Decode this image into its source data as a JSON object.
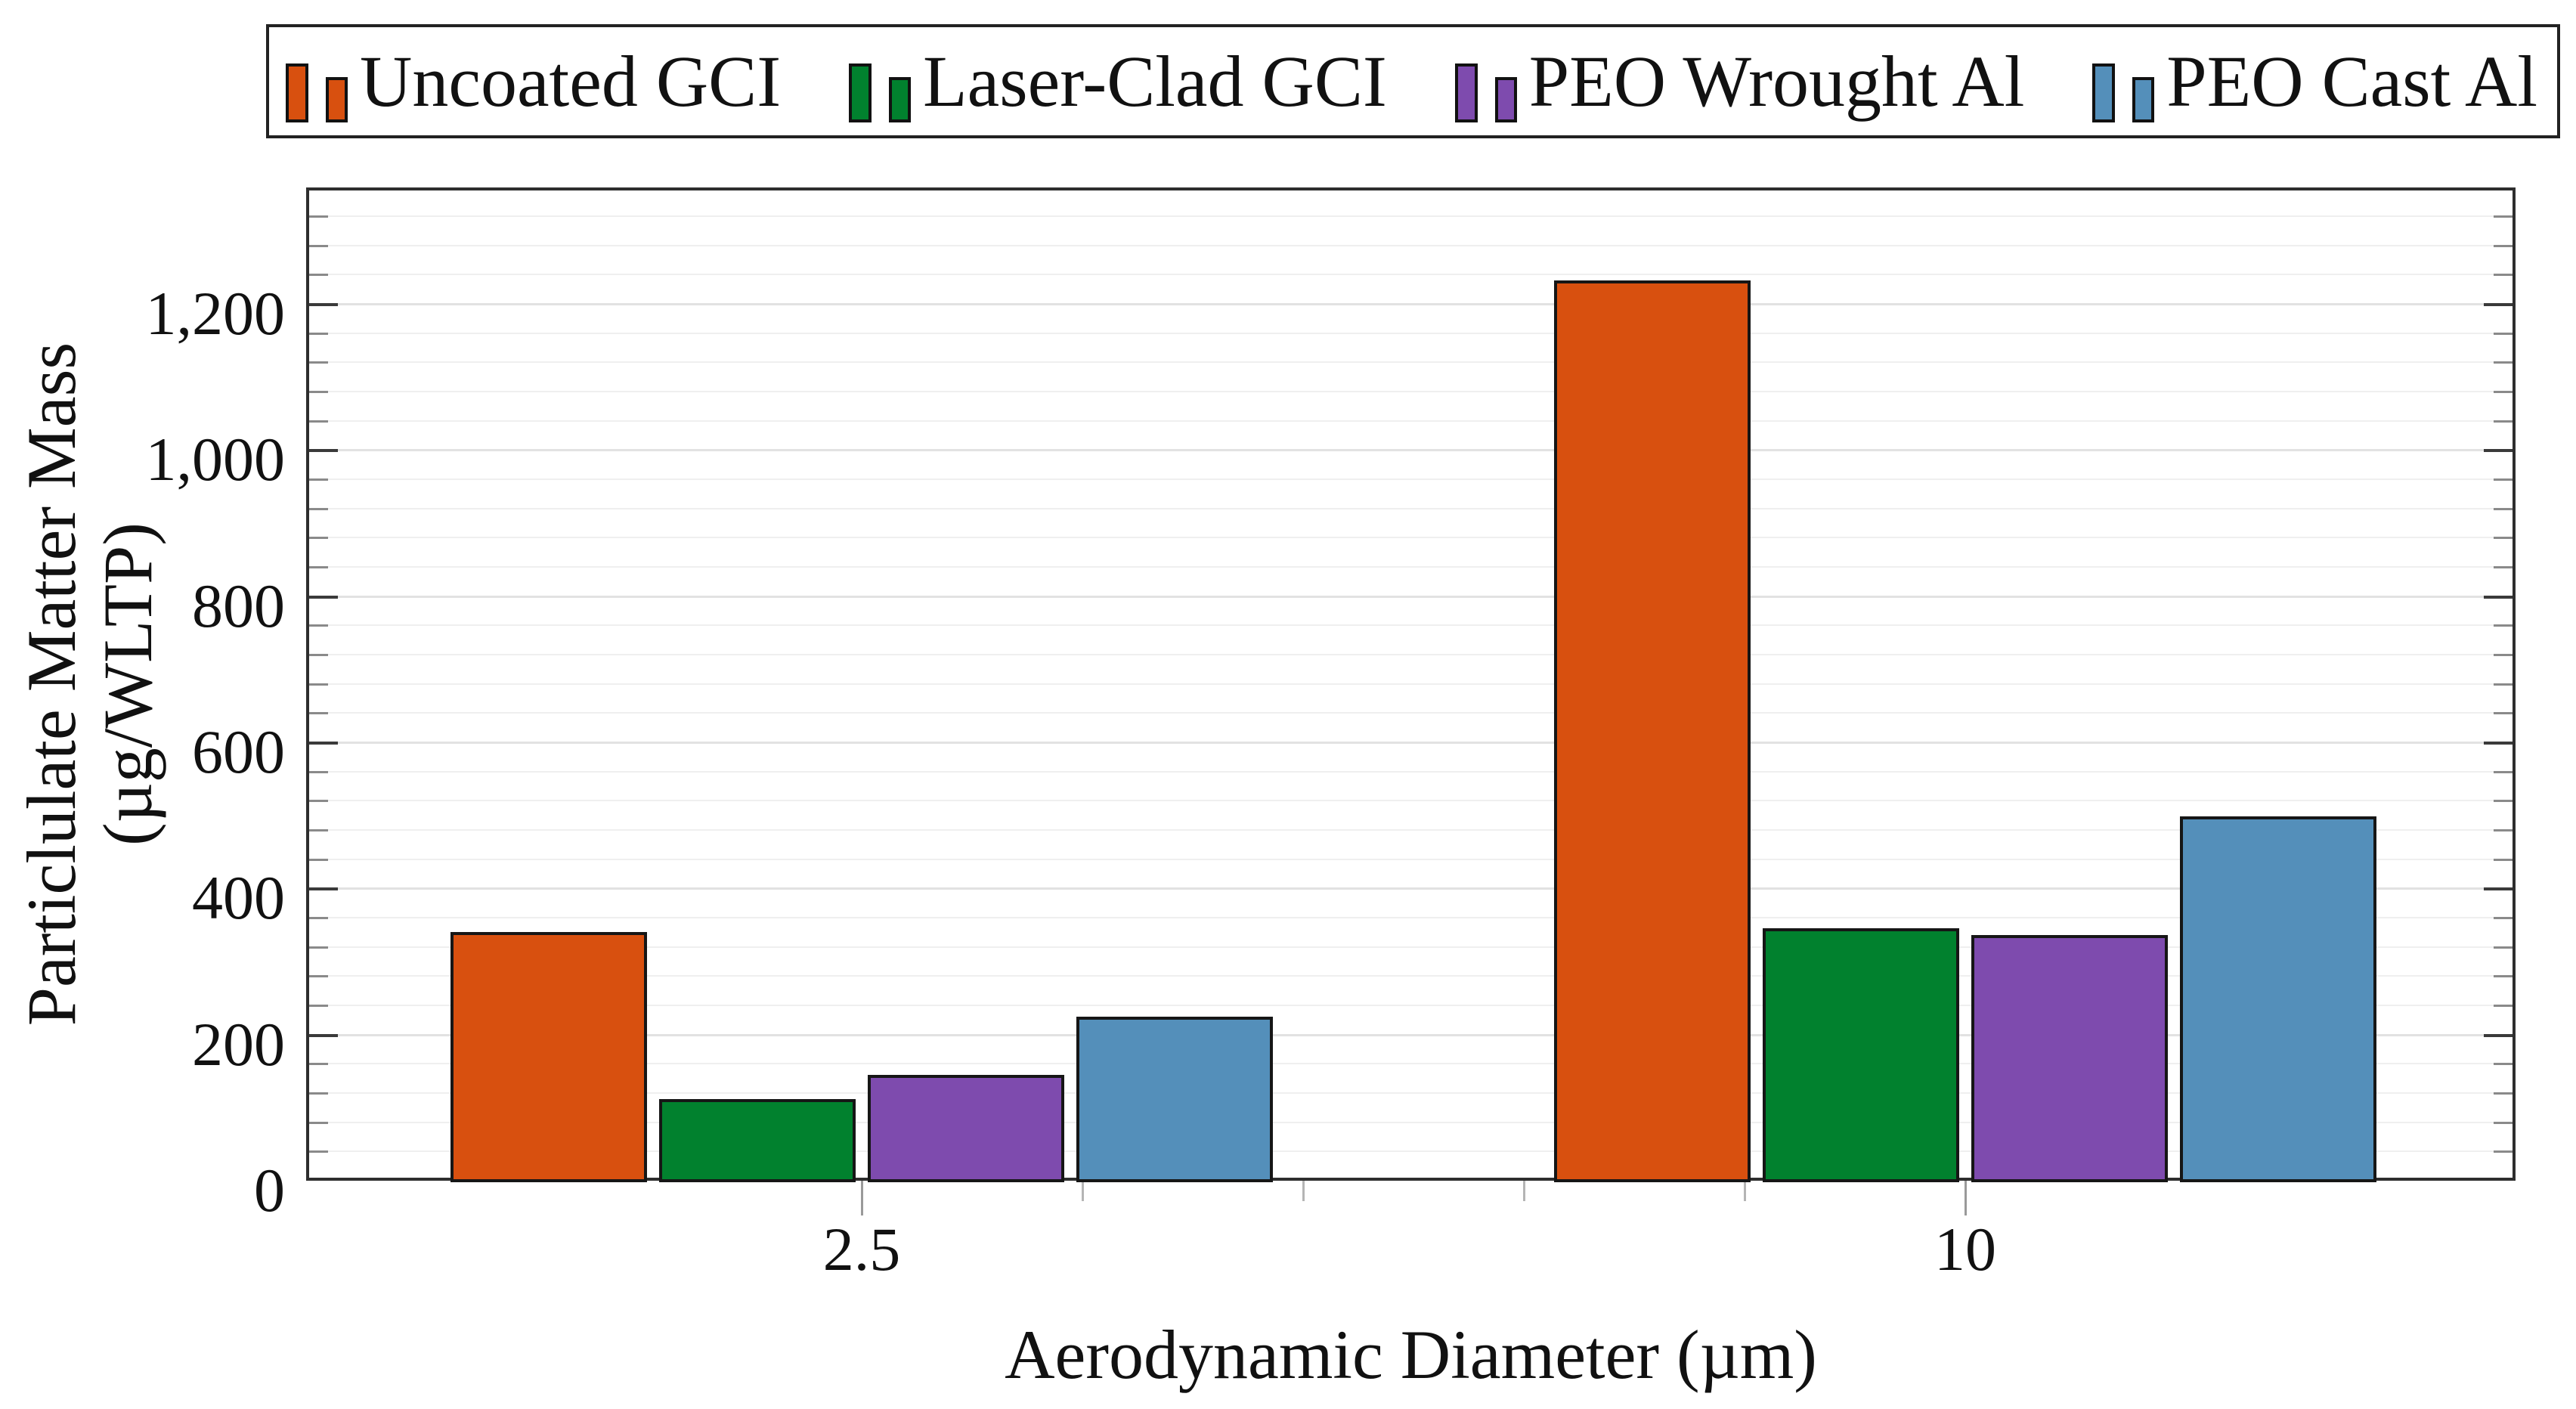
{
  "chart_data": {
    "type": "bar",
    "title": "",
    "xlabel": "Aerodynamic Diameter (µm)",
    "ylabel": "Particlulate Matter Mass (µg/WLTP)",
    "categories": [
      "2.5",
      "10"
    ],
    "series": [
      {
        "name": "Uncoated GCI",
        "color": "#D8500F",
        "values": [
          340,
          1232
        ]
      },
      {
        "name": "Laser-Clad GCI",
        "color": "#01812E",
        "values": [
          112,
          346
        ]
      },
      {
        "name": "PEO Wrought Al",
        "color": "#7E4BAE",
        "values": [
          145,
          336
        ]
      },
      {
        "name": "PEO Cast Al",
        "color": "#548FBA",
        "values": [
          224,
          499
        ]
      }
    ],
    "ylim": [
      0,
      1359
    ],
    "yticks": [
      0,
      200,
      400,
      600,
      800,
      1000,
      1200
    ],
    "ytick_labels": [
      "0",
      "200",
      "400",
      "600",
      "800",
      "1,000",
      "1,200"
    ],
    "minor_y_step": 40,
    "x_minor_ticks_between_majors": 4,
    "grid": "horizontal minor gridlines only",
    "legend_position": "top outside, single row, boxed",
    "frame_color": "#2e2e2e",
    "background_color": "#ffffff"
  }
}
